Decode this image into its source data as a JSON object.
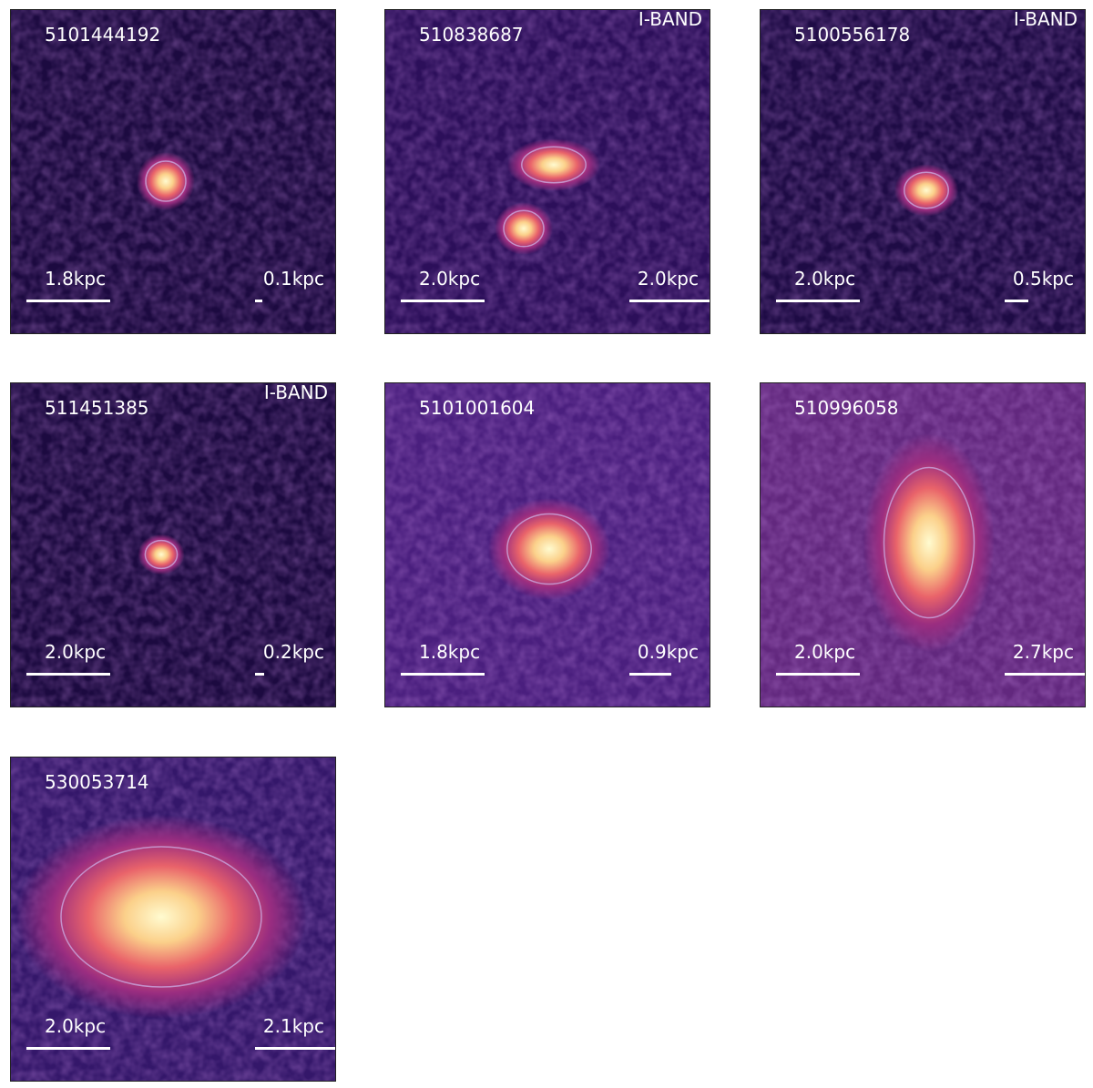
{
  "panels": [
    {
      "id": "5101444192",
      "left_scale": "1.8kpc",
      "right_scale": "0.1kpc"
    },
    {
      "id": "510838687",
      "band": "I-BAND",
      "left_scale": "2.0kpc",
      "right_scale": "2.0kpc"
    },
    {
      "id": "5100556178",
      "band": "I-BAND",
      "left_scale": "2.0kpc",
      "right_scale": "0.5kpc"
    },
    {
      "id": "511451385",
      "band": "I-BAND",
      "left_scale": "2.0kpc",
      "right_scale": "0.2kpc"
    },
    {
      "id": "5101001604",
      "left_scale": "1.8kpc",
      "right_scale": "0.9kpc"
    },
    {
      "id": "510996058",
      "left_scale": "2.0kpc",
      "right_scale": "2.7kpc"
    },
    {
      "id": "530053714",
      "left_scale": "2.0kpc",
      "right_scale": "2.1kpc"
    }
  ]
}
